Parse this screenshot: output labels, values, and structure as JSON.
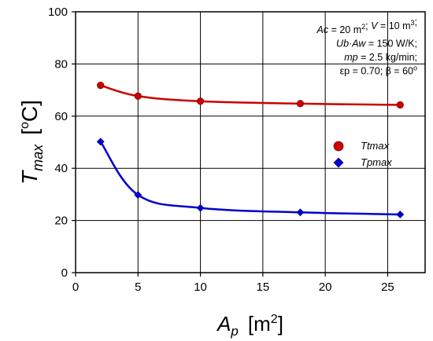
{
  "chart_data": {
    "type": "line",
    "xlabel_main": "A",
    "xlabel_sub": "p",
    "xlabel_unit_pre": "[m",
    "xlabel_unit_sup": "2",
    "xlabel_unit_post": "]",
    "ylabel_main": "T",
    "ylabel_sub": "max",
    "ylabel_unit_pre": "[",
    "ylabel_unit_sup": "o",
    "ylabel_unit_post": "C]",
    "xlim": [
      0,
      28
    ],
    "ylim": [
      0,
      100
    ],
    "xticks": [
      "0",
      "5",
      "10",
      "15",
      "20",
      "25"
    ],
    "yticks": [
      "0",
      "20",
      "40",
      "60",
      "80",
      "100"
    ],
    "grid": true,
    "legend_position": "right",
    "series": [
      {
        "name": "Ttmax",
        "color": "#cc0000",
        "marker": "circle",
        "x": [
          2,
          5,
          10,
          18,
          26
        ],
        "y": [
          71.8,
          67.7,
          65.7,
          64.8,
          64.3
        ]
      },
      {
        "name": "Tpmax",
        "color": "#0000cc",
        "marker": "diamond",
        "x": [
          2,
          5,
          10,
          18,
          26
        ],
        "y": [
          50.2,
          29.8,
          24.8,
          23.1,
          22.3
        ]
      }
    ],
    "annotations": [
      {
        "parts": [
          [
            "Ac",
            true
          ],
          [
            " = 20 m",
            false
          ],
          [
            "2",
            "sup"
          ],
          [
            "; ",
            false
          ],
          [
            "V",
            true
          ],
          [
            " = 10 m",
            false
          ],
          [
            "3",
            "sup"
          ],
          [
            ";",
            false
          ]
        ]
      },
      {
        "parts": [
          [
            "Ub",
            true
          ],
          [
            "·",
            false
          ],
          [
            "Aw",
            true
          ],
          [
            " = 150 W/K;",
            false
          ]
        ]
      },
      {
        "parts": [
          [
            "mp",
            true
          ],
          [
            " = 2.5 kg/min;",
            false
          ]
        ]
      },
      {
        "parts": [
          [
            "εp",
            false
          ],
          [
            " = 0.70;  β = 60",
            false
          ],
          [
            "o",
            "sup"
          ]
        ]
      }
    ]
  }
}
